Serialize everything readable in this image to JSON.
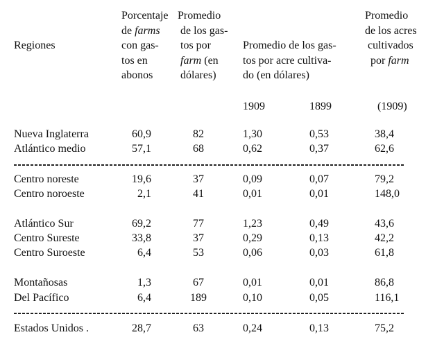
{
  "table": {
    "headers": {
      "region": [
        [
          {
            "t": "Regiones"
          }
        ]
      ],
      "pct_farms": [
        [
          {
            "t": "Porcentaje"
          }
        ],
        [
          {
            "t": "de "
          },
          {
            "t": "farms",
            "i": true
          }
        ],
        [
          {
            "t": "con gas-"
          }
        ],
        [
          {
            "t": "tos en"
          }
        ],
        [
          {
            "t": "abonos"
          }
        ]
      ],
      "avg_per_farm": [
        [
          {
            "t": "Promedio"
          }
        ],
        [
          {
            "t": " de los gas-"
          }
        ],
        [
          {
            "t": " tos por"
          }
        ],
        [
          {
            "t": " "
          },
          {
            "t": "farm",
            "i": true
          },
          {
            "t": " (en"
          }
        ],
        [
          {
            "t": " dólares)"
          }
        ]
      ],
      "avg_per_acre": [
        [
          {
            "t": "Promedio de los gas-"
          }
        ],
        [
          {
            "t": "tos por acre cultiva-"
          }
        ],
        [
          {
            "t": "do (en dólares)"
          }
        ]
      ],
      "avg_acres": [
        [
          {
            "t": "Promedio"
          }
        ],
        [
          {
            "t": "de los acres"
          }
        ],
        [
          {
            "t": " cultivados"
          }
        ],
        [
          {
            "t": "  por "
          },
          {
            "t": "farm",
            "i": true
          }
        ]
      ]
    },
    "years": {
      "col3": "1909",
      "col4": "1899",
      "col5": "(1909)"
    },
    "groups": [
      [
        [
          "Nueva Inglaterra",
          "60,9",
          "82",
          "1,30",
          "0,53",
          "38,4"
        ],
        [
          "Atlántico medio",
          "57,1",
          "68",
          "0,62",
          "0,37",
          "62,6"
        ]
      ],
      [
        [
          "Centro noreste",
          "19,6",
          "37",
          "0,09",
          "0,07",
          "79,2"
        ],
        [
          "Centro noroeste",
          "2,1",
          "41",
          "0,01",
          "0,01",
          "148,0"
        ]
      ],
      [
        [
          "Atlántico Sur",
          "69,2",
          "77",
          "1,23",
          "0,49",
          "43,6"
        ],
        [
          "Centro Sureste",
          "33,8",
          "37",
          "0,29",
          "0,13",
          "42,2"
        ],
        [
          "Centro Suroeste",
          "6,4",
          "53",
          "0,06",
          "0,03",
          "61,8"
        ]
      ],
      [
        [
          "Montañosas",
          "1,3",
          "67",
          "0,01",
          "0,01",
          "86,8"
        ],
        [
          "Del Pacífico",
          "6,4",
          "189",
          "0,10",
          "0,05",
          "116,1"
        ]
      ]
    ],
    "total": [
      "Estados Unidos .",
      "28,7",
      "63",
      "0,24",
      "0,13",
      "75,2"
    ]
  }
}
